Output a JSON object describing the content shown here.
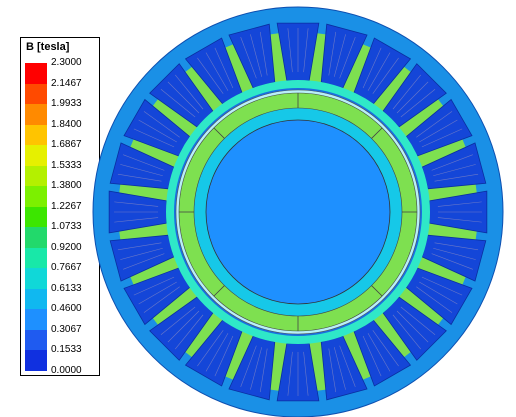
{
  "legend": {
    "title": "B [tesla]",
    "ticks": [
      "2.3000",
      "2.1467",
      "1.9933",
      "1.8400",
      "1.6867",
      "1.5333",
      "1.3800",
      "1.2267",
      "1.0733",
      "0.9200",
      "0.7667",
      "0.6133",
      "0.4600",
      "0.3067",
      "0.1533",
      "0.0000"
    ],
    "colors": [
      "#ff0000",
      "#ff4a00",
      "#ff8a00",
      "#ffc400",
      "#e6f000",
      "#b4f000",
      "#7cf000",
      "#3ce600",
      "#22d96b",
      "#18e8a8",
      "#10d8d8",
      "#10b8f0",
      "#1e90ff",
      "#1f5bf0",
      "#1030e0"
    ]
  },
  "motor": {
    "colors": {
      "stator_base": "#1a90e6",
      "stator_dark": "#1a6fe0",
      "slot_fill": "#1446d8",
      "tooth_green": "#7ee050",
      "tooth_tip": "#2fe8c8",
      "rotor_ring": "#16c8e8",
      "rotor_core": "#1e90ff"
    },
    "stator_slots": 24
  }
}
